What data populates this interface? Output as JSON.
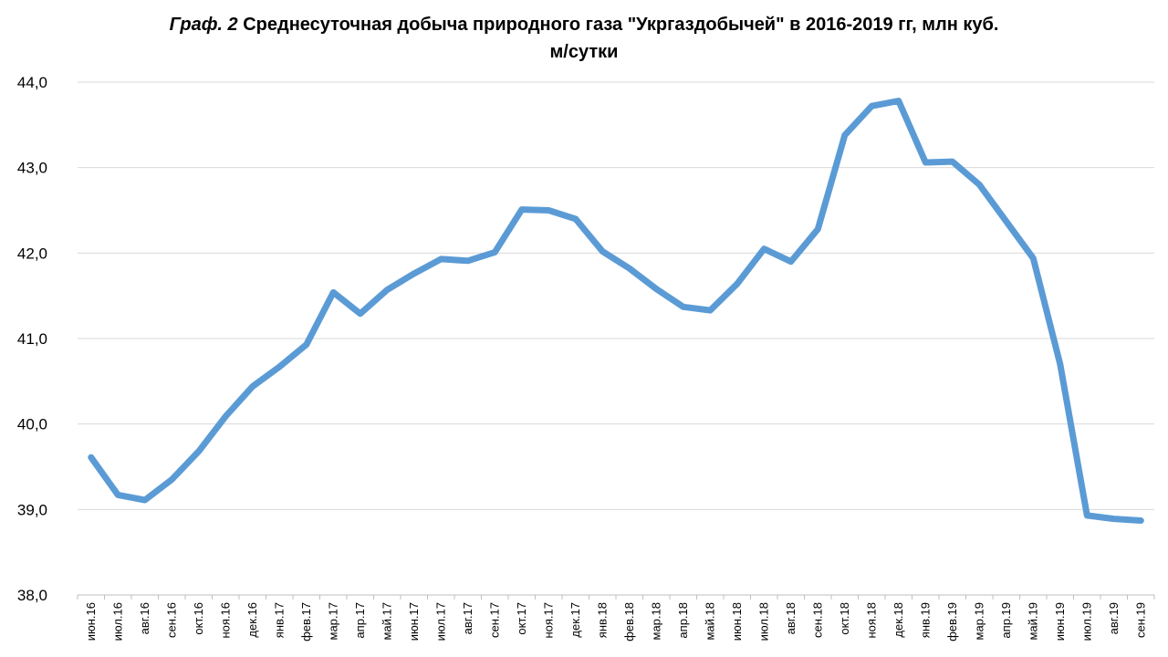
{
  "chart_data": {
    "type": "line",
    "title": {
      "prefix": "Граф. 2",
      "text_line1": "Среднесуточная добыча природного газа \"Укргаздобычей\" в 2016-2019  гг, млн куб.",
      "text_line2": "м/сутки"
    },
    "xlabel": "",
    "ylabel": "",
    "ylim": [
      38.0,
      44.0
    ],
    "yticks": [
      "38,0",
      "39,0",
      "40,0",
      "41,0",
      "42,0",
      "43,0",
      "44,0"
    ],
    "grid": true,
    "legend": "none",
    "color": "#5B9BD5",
    "categories": [
      "июн.16",
      "июл.16",
      "авг.16",
      "сен.16",
      "окт.16",
      "ноя.16",
      "дек.16",
      "янв.17",
      "фев.17",
      "мар.17",
      "апр.17",
      "май.17",
      "июн.17",
      "июл.17",
      "авг.17",
      "сен.17",
      "окт.17",
      "ноя.17",
      "дек.17",
      "янв.18",
      "фев.18",
      "мар.18",
      "апр.18",
      "май.18",
      "июн.18",
      "июл.18",
      "авг.18",
      "сен.18",
      "окт.18",
      "ноя.18",
      "дек.18",
      "янв.19",
      "фев.19",
      "мар.19",
      "апр.19",
      "май.19",
      "июн.19",
      "июл.19",
      "авг.19",
      "сен.19"
    ],
    "series": [
      {
        "values": [
          39.61,
          39.17,
          39.11,
          39.35,
          39.68,
          40.09,
          40.44,
          40.67,
          40.93,
          41.54,
          41.29,
          41.57,
          41.76,
          41.93,
          41.91,
          42.01,
          42.51,
          42.5,
          42.4,
          42.02,
          41.82,
          41.58,
          41.37,
          41.33,
          41.64,
          42.05,
          41.9,
          42.28,
          43.38,
          43.72,
          43.78,
          43.06,
          43.07,
          42.8,
          42.37,
          41.94,
          40.7,
          38.93,
          38.89,
          38.87
        ]
      }
    ]
  }
}
